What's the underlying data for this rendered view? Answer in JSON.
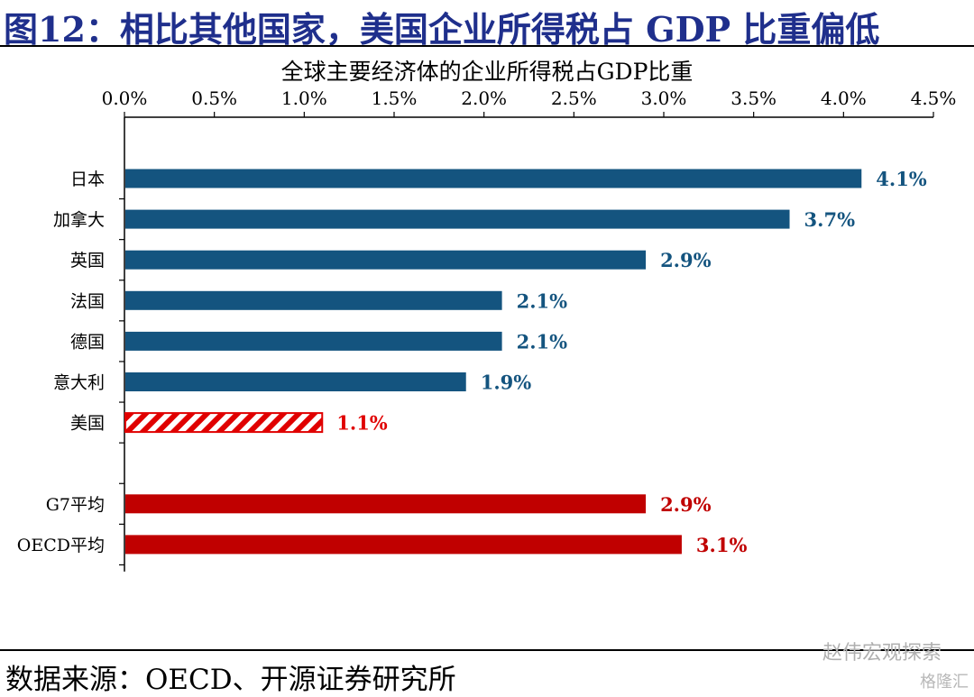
{
  "header": {
    "figure_title": "图12：相比其他国家，美国企业所得税占 GDP 比重偏低"
  },
  "chart_data": {
    "type": "bar",
    "orientation": "horizontal",
    "title": "全球主要经济体的企业所得税占GDP比重",
    "xlabel": "",
    "ylabel": "",
    "xlim": [
      0,
      4.5
    ],
    "x_ticks": [
      "0.0%",
      "0.5%",
      "1.0%",
      "1.5%",
      "2.0%",
      "2.5%",
      "3.0%",
      "3.5%",
      "4.0%",
      "4.5%"
    ],
    "axis_position": "top",
    "grid": false,
    "categories": [
      "日本",
      "加拿大",
      "英国",
      "法国",
      "德国",
      "意大利",
      "美国",
      "",
      "G7平均",
      "OECD平均"
    ],
    "values": [
      4.1,
      3.7,
      2.9,
      2.1,
      2.1,
      1.9,
      1.1,
      null,
      2.9,
      3.1
    ],
    "data_labels": [
      "4.1%",
      "3.7%",
      "2.9%",
      "2.1%",
      "2.1%",
      "1.9%",
      "1.1%",
      "",
      "2.9%",
      "3.1%"
    ],
    "bar_styles": [
      "blue",
      "blue",
      "blue",
      "blue",
      "blue",
      "blue",
      "hatched-red",
      "none",
      "red",
      "red"
    ],
    "colors": {
      "blue": "#14547f",
      "red": "#c00000",
      "title_blue": "#1f2f8c"
    }
  },
  "footer": {
    "source": "数据来源：OECD、开源证券研究所",
    "watermark": "赵伟宏观探索",
    "watermark2": "格隆汇"
  }
}
